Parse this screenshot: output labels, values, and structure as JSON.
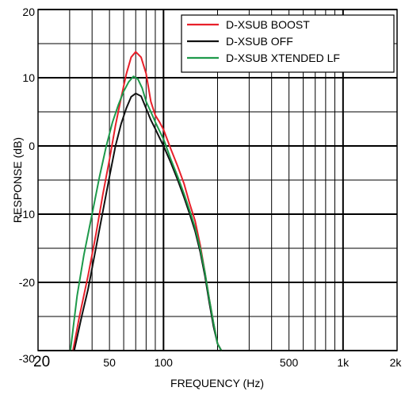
{
  "chart_data": {
    "type": "line",
    "xlabel": "FREQUENCY (Hz)",
    "ylabel": "RESPONSE (dB)",
    "xscale": "log",
    "xlim": [
      20,
      2000
    ],
    "ylim": [
      -30,
      20
    ],
    "grid": true,
    "legend_position": "top-right",
    "x_ticks": [
      {
        "value": 20,
        "label": "20"
      },
      {
        "value": 50,
        "label": "50"
      },
      {
        "value": 100,
        "label": "100"
      },
      {
        "value": 500,
        "label": "500"
      },
      {
        "value": 1000,
        "label": "1k"
      },
      {
        "value": 2000,
        "label": "2k"
      }
    ],
    "y_ticks": [
      {
        "value": 20,
        "label": "20"
      },
      {
        "value": 10,
        "label": "10"
      },
      {
        "value": 0,
        "label": "0"
      },
      {
        "value": -10,
        "label": "-10"
      },
      {
        "value": -20,
        "label": "-20"
      },
      {
        "value": -30,
        "label": "-30"
      }
    ],
    "series": [
      {
        "name": "D-XSUB BOOST",
        "color": "#e8202a",
        "x": [
          31.3,
          34,
          38,
          42,
          46,
          50,
          54,
          58,
          62,
          66,
          70,
          75,
          80,
          85,
          90,
          95,
          100,
          110,
          120,
          130,
          140,
          150,
          160,
          170,
          180,
          190,
          200,
          210
        ],
        "y": [
          -30,
          -25,
          -19,
          -13,
          -7,
          -2,
          3,
          7,
          10.5,
          13,
          13.8,
          13,
          10.6,
          6.5,
          4.5,
          3.5,
          2.4,
          -0.5,
          -3,
          -5.5,
          -8.5,
          -11,
          -14.5,
          -18.5,
          -22.5,
          -26,
          -29,
          -30
        ]
      },
      {
        "name": "D-XSUB OFF",
        "color": "#111111",
        "x": [
          31.8,
          35,
          38,
          42,
          46,
          50,
          54,
          58,
          62,
          66,
          70,
          75,
          80,
          85,
          90,
          95,
          100,
          110,
          120,
          130,
          140,
          150,
          160,
          170,
          180,
          190,
          200,
          210
        ],
        "y": [
          -30,
          -25,
          -21,
          -15,
          -9.5,
          -4.5,
          0,
          3.2,
          5.5,
          7.2,
          7.7,
          7.3,
          5.5,
          3.8,
          2.5,
          1.2,
          0,
          -2.5,
          -5,
          -7.5,
          -10,
          -12.5,
          -15.5,
          -19,
          -23,
          -26.5,
          -29,
          -30
        ]
      },
      {
        "name": "D-XSUB XTENDED LF",
        "color": "#1e9a4b",
        "x": [
          30.3,
          33,
          36,
          40,
          44,
          48,
          52,
          56,
          60,
          64,
          68,
          72,
          76,
          80,
          85,
          90,
          95,
          100,
          110,
          120,
          130,
          140,
          150,
          160,
          170,
          180,
          190,
          200,
          210
        ],
        "y": [
          -30,
          -22,
          -16,
          -10,
          -4.5,
          0,
          3.5,
          6,
          8,
          9.4,
          10.2,
          9.8,
          8.5,
          6.5,
          5,
          3.5,
          2.2,
          1,
          -2,
          -4.5,
          -7,
          -9.5,
          -12,
          -15,
          -18.5,
          -22.5,
          -26,
          -29,
          -30
        ]
      }
    ]
  }
}
